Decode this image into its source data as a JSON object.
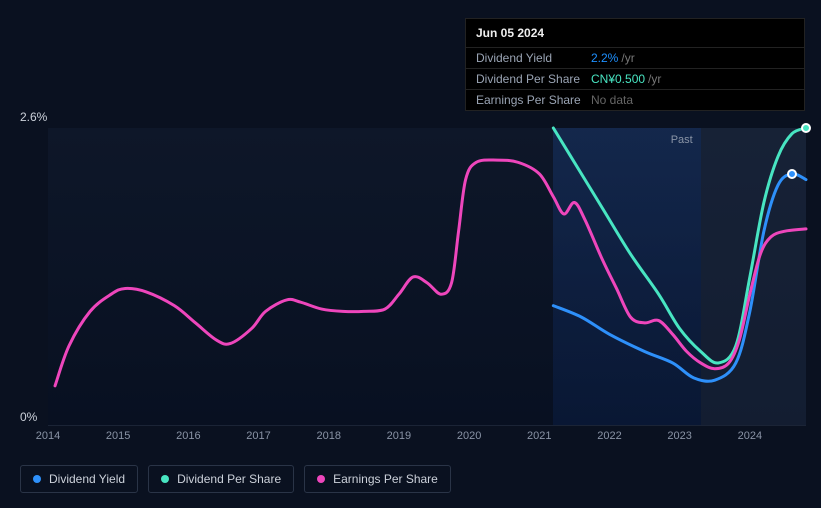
{
  "tooltip": {
    "date": "Jun 05 2024",
    "rows": [
      {
        "label": "Dividend Yield",
        "value": "2.2%",
        "suffix": "/yr",
        "color_class": ""
      },
      {
        "label": "Dividend Per Share",
        "value": "CN¥0.500",
        "suffix": "/yr",
        "color_class": "teal"
      },
      {
        "label": "Earnings Per Share",
        "value": "No data",
        "suffix": "",
        "color_class": "nodata"
      }
    ]
  },
  "chart": {
    "type": "line",
    "background_color": "#0a1120",
    "plot_bg_top": "#0e1729",
    "plot_bg_bottom": "#081021",
    "y_axis": {
      "max_label": "2.6%",
      "min_label": "0%",
      "ymin": 0,
      "ymax": 2.6
    },
    "x_axis": {
      "ticks": [
        "2014",
        "2015",
        "2016",
        "2017",
        "2018",
        "2019",
        "2020",
        "2021",
        "2022",
        "2023",
        "2024"
      ],
      "x_start": 2014,
      "x_end": 2024.8
    },
    "past_label": "Past",
    "highlight_region": {
      "x_from": 2021.2,
      "x_to": 2023.3
    },
    "future_region_from": 2023.3,
    "series": [
      {
        "name": "Dividend Yield",
        "color": "#2e90fa",
        "width": 3,
        "points": [
          [
            2021.2,
            1.05
          ],
          [
            2021.6,
            0.95
          ],
          [
            2022.0,
            0.8
          ],
          [
            2022.5,
            0.65
          ],
          [
            2022.9,
            0.55
          ],
          [
            2023.2,
            0.42
          ],
          [
            2023.5,
            0.4
          ],
          [
            2023.8,
            0.55
          ],
          [
            2024.0,
            1.0
          ],
          [
            2024.2,
            1.7
          ],
          [
            2024.4,
            2.1
          ],
          [
            2024.6,
            2.2
          ],
          [
            2024.8,
            2.15
          ]
        ],
        "marker_at": [
          2024.6,
          2.2
        ]
      },
      {
        "name": "Dividend Per Share",
        "color": "#48e5c2",
        "width": 3,
        "points": [
          [
            2021.2,
            2.6
          ],
          [
            2021.5,
            2.3
          ],
          [
            2021.9,
            1.9
          ],
          [
            2022.3,
            1.5
          ],
          [
            2022.7,
            1.15
          ],
          [
            2023.0,
            0.85
          ],
          [
            2023.3,
            0.65
          ],
          [
            2023.55,
            0.55
          ],
          [
            2023.8,
            0.7
          ],
          [
            2024.0,
            1.3
          ],
          [
            2024.2,
            1.95
          ],
          [
            2024.4,
            2.35
          ],
          [
            2024.6,
            2.55
          ],
          [
            2024.8,
            2.6
          ]
        ],
        "marker_at": [
          2024.8,
          2.6
        ]
      },
      {
        "name": "Earnings Per Share",
        "color": "#ee46bc",
        "width": 3,
        "points": [
          [
            2014.1,
            0.35
          ],
          [
            2014.3,
            0.7
          ],
          [
            2014.6,
            1.0
          ],
          [
            2014.9,
            1.15
          ],
          [
            2015.1,
            1.2
          ],
          [
            2015.4,
            1.17
          ],
          [
            2015.8,
            1.05
          ],
          [
            2016.1,
            0.9
          ],
          [
            2016.4,
            0.75
          ],
          [
            2016.6,
            0.72
          ],
          [
            2016.9,
            0.85
          ],
          [
            2017.1,
            1.0
          ],
          [
            2017.4,
            1.1
          ],
          [
            2017.6,
            1.08
          ],
          [
            2017.9,
            1.02
          ],
          [
            2018.2,
            1.0
          ],
          [
            2018.5,
            1.0
          ],
          [
            2018.8,
            1.02
          ],
          [
            2019.0,
            1.15
          ],
          [
            2019.2,
            1.3
          ],
          [
            2019.4,
            1.25
          ],
          [
            2019.6,
            1.15
          ],
          [
            2019.75,
            1.25
          ],
          [
            2019.85,
            1.7
          ],
          [
            2019.95,
            2.15
          ],
          [
            2020.1,
            2.3
          ],
          [
            2020.4,
            2.32
          ],
          [
            2020.7,
            2.3
          ],
          [
            2021.0,
            2.2
          ],
          [
            2021.2,
            2.0
          ],
          [
            2021.35,
            1.85
          ],
          [
            2021.5,
            1.95
          ],
          [
            2021.65,
            1.8
          ],
          [
            2021.9,
            1.45
          ],
          [
            2022.1,
            1.2
          ],
          [
            2022.3,
            0.95
          ],
          [
            2022.5,
            0.9
          ],
          [
            2022.7,
            0.92
          ],
          [
            2022.9,
            0.8
          ],
          [
            2023.1,
            0.65
          ],
          [
            2023.3,
            0.55
          ],
          [
            2023.5,
            0.5
          ],
          [
            2023.7,
            0.55
          ],
          [
            2023.85,
            0.75
          ],
          [
            2024.0,
            1.15
          ],
          [
            2024.15,
            1.5
          ],
          [
            2024.3,
            1.65
          ],
          [
            2024.5,
            1.7
          ],
          [
            2024.8,
            1.72
          ]
        ]
      }
    ]
  },
  "legend": {
    "items": [
      {
        "label": "Dividend Yield",
        "color": "#2e90fa"
      },
      {
        "label": "Dividend Per Share",
        "color": "#48e5c2"
      },
      {
        "label": "Earnings Per Share",
        "color": "#ee46bc"
      }
    ]
  }
}
